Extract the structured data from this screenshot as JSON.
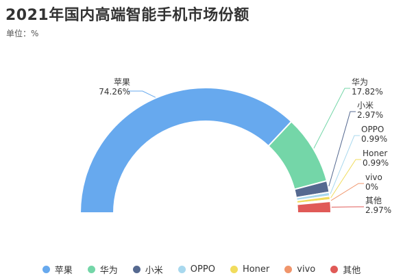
{
  "title": "2021年国内高端智能手机市场份额",
  "unit_label": "单位：%",
  "chart_data": {
    "type": "pie",
    "subtype": "half-donut",
    "title": "2021年国内高端智能手机市场份额",
    "unit": "%",
    "legend_position": "bottom",
    "categories": [
      "苹果",
      "华为",
      "小米",
      "OPPO",
      "Honer",
      "vivo",
      "其他"
    ],
    "values": [
      74.26,
      17.82,
      2.97,
      0.99,
      0.99,
      0,
      2.97
    ],
    "value_labels": [
      "74.26%",
      "17.82%",
      "2.97%",
      "0.99%",
      "0.99%",
      "0%",
      "2.97%"
    ],
    "colors": [
      "#67a9ee",
      "#74d6a8",
      "#556990",
      "#a8d8ee",
      "#f1dc5d",
      "#f0956b",
      "#e05a57"
    ]
  }
}
